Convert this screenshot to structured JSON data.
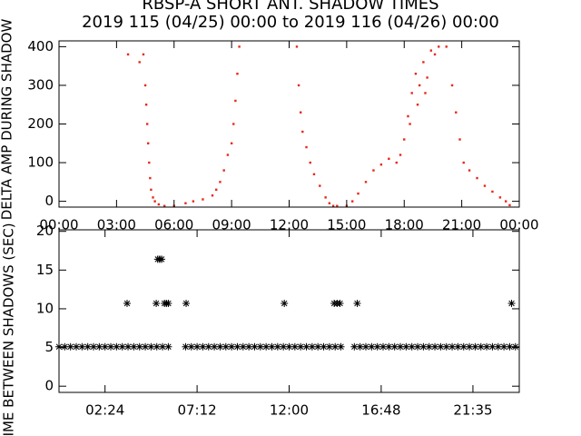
{
  "chart_data": [
    {
      "type": "scatter",
      "title": "RBSP-A SHORT ANT. SHADOW TIMES",
      "subtitle": "2019 115 (04/25) 00:00 to 2019 116 (04/26) 00:00",
      "ylabel": "DELTA AMP DURING SHADOW",
      "color": "#e8281a",
      "xlim": [
        0,
        24
      ],
      "xticks": [
        {
          "value": 0,
          "label": "00:00"
        },
        {
          "value": 3,
          "label": "03:00"
        },
        {
          "value": 6,
          "label": "06:00"
        },
        {
          "value": 9,
          "label": "09:00"
        },
        {
          "value": 12,
          "label": "12:00"
        },
        {
          "value": 15,
          "label": "15:00"
        },
        {
          "value": 18,
          "label": "18:00"
        },
        {
          "value": 21,
          "label": "21:00"
        },
        {
          "value": 24,
          "label": "00:00"
        }
      ],
      "ylim": [
        -15,
        415
      ],
      "yticks": [
        0,
        100,
        200,
        300,
        400
      ],
      "x": [
        3.6,
        4.2,
        4.4,
        4.5,
        4.55,
        4.6,
        4.65,
        4.7,
        4.75,
        4.8,
        4.9,
        5.0,
        5.2,
        5.5,
        6.0,
        6.6,
        7.0,
        7.5,
        8.0,
        8.2,
        8.4,
        8.6,
        8.8,
        9.0,
        9.1,
        9.2,
        9.3,
        9.4,
        12.4,
        12.5,
        12.6,
        12.7,
        12.9,
        13.1,
        13.3,
        13.6,
        13.9,
        14.1,
        14.3,
        14.5,
        15.0,
        15.3,
        15.6,
        16.0,
        16.4,
        16.8,
        17.2,
        17.6,
        17.8,
        18.0,
        18.2,
        18.3,
        18.4,
        18.6,
        18.7,
        18.8,
        19.0,
        19.1,
        19.2,
        19.4,
        19.6,
        19.8,
        20.2,
        20.5,
        20.7,
        20.9,
        21.1,
        21.4,
        21.8,
        22.2,
        22.6,
        23.0,
        23.3,
        23.5
      ],
      "values": [
        380,
        360,
        380,
        300,
        250,
        200,
        150,
        100,
        60,
        30,
        10,
        0,
        -8,
        -12,
        -12,
        -5,
        0,
        5,
        15,
        30,
        50,
        80,
        120,
        150,
        200,
        260,
        330,
        400,
        400,
        300,
        230,
        180,
        140,
        100,
        70,
        40,
        10,
        -5,
        -12,
        -12,
        -12,
        0,
        20,
        50,
        80,
        95,
        110,
        100,
        120,
        160,
        220,
        200,
        280,
        330,
        250,
        300,
        360,
        280,
        320,
        390,
        380,
        400,
        400,
        300,
        230,
        160,
        100,
        80,
        60,
        40,
        25,
        10,
        0,
        -10
      ]
    },
    {
      "type": "scatter",
      "marker": "asterisk",
      "ylabel": "TIME BETWEEN SHADOWS (SEC)",
      "color": "#000000",
      "xlim": [
        0,
        24
      ],
      "xticks": [
        {
          "value": 2.4,
          "label": "02:24"
        },
        {
          "value": 7.2,
          "label": "07:12"
        },
        {
          "value": 12,
          "label": "12:00"
        },
        {
          "value": 16.8,
          "label": "16:48"
        },
        {
          "value": 21.5833,
          "label": "21:35"
        }
      ],
      "ylim": [
        -0.8,
        20.2
      ],
      "yticks": [
        0,
        5,
        10,
        15,
        20
      ],
      "x": [
        0,
        0.3,
        0.6,
        0.9,
        1.2,
        1.5,
        1.8,
        2.1,
        2.4,
        2.7,
        3,
        3.3,
        3.6,
        3.9,
        4.2,
        4.5,
        4.8,
        5.1,
        5.4,
        5.7,
        6.6,
        6.9,
        7.2,
        7.5,
        7.8,
        8.1,
        8.4,
        8.7,
        9,
        9.3,
        9.6,
        9.9,
        10.2,
        10.5,
        10.8,
        11.1,
        11.4,
        11.7,
        12,
        12.3,
        12.6,
        12.9,
        13.2,
        13.5,
        13.8,
        14.1,
        14.4,
        14.7,
        15.4,
        15.7,
        16,
        16.3,
        16.6,
        16.9,
        17.2,
        17.5,
        17.8,
        18.1,
        18.4,
        18.7,
        19,
        19.3,
        19.6,
        19.9,
        20.2,
        20.5,
        20.8,
        21.1,
        21.4,
        21.7,
        22,
        22.3,
        22.6,
        22.9,
        23.2,
        23.5,
        23.8,
        3.55,
        5.07,
        5.5,
        5.6,
        5.7,
        6.63,
        11.75,
        14.35,
        14.5,
        14.65,
        15.55,
        23.6,
        5.15,
        5.25,
        5.35
      ],
      "values": [
        5.1,
        5.1,
        5.1,
        5.1,
        5.1,
        5.1,
        5.1,
        5.1,
        5.1,
        5.1,
        5.1,
        5.1,
        5.1,
        5.1,
        5.1,
        5.1,
        5.1,
        5.1,
        5.1,
        5.1,
        5.1,
        5.1,
        5.1,
        5.1,
        5.1,
        5.1,
        5.1,
        5.1,
        5.1,
        5.1,
        5.1,
        5.1,
        5.1,
        5.1,
        5.1,
        5.1,
        5.1,
        5.1,
        5.1,
        5.1,
        5.1,
        5.1,
        5.1,
        5.1,
        5.1,
        5.1,
        5.1,
        5.1,
        5.1,
        5.1,
        5.1,
        5.1,
        5.1,
        5.1,
        5.1,
        5.1,
        5.1,
        5.1,
        5.1,
        5.1,
        5.1,
        5.1,
        5.1,
        5.1,
        5.1,
        5.1,
        5.1,
        5.1,
        5.1,
        5.1,
        5.1,
        5.1,
        5.1,
        5.1,
        5.1,
        5.1,
        5.1,
        10.7,
        10.7,
        10.7,
        10.7,
        10.7,
        10.7,
        10.7,
        10.7,
        10.7,
        10.7,
        10.7,
        10.7,
        16.4,
        16.4,
        16.4
      ]
    }
  ]
}
